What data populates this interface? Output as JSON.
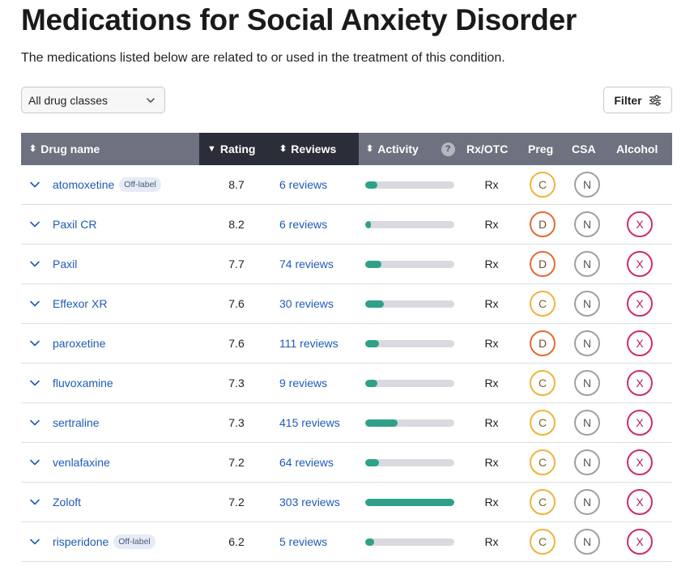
{
  "page": {
    "title": "Medications for Social Anxiety Disorder",
    "subtitle": "The medications listed below are related to or used in the treatment of this condition."
  },
  "controls": {
    "drug_class_select": {
      "value": "All drug classes",
      "icon": "chevron-down-icon"
    },
    "filter_button": {
      "label": "Filter",
      "icon": "sliders-icon"
    }
  },
  "colors": {
    "header_bg": "#6e7280",
    "header_active_bg": "#2b2e38",
    "link": "#1e5bb8",
    "activity_fill": "#2ea188",
    "preg_C": "#f0b43a",
    "preg_D": "#e46a36",
    "csa_N": "#9ea0a6",
    "alcohol_X": "#d02a6d"
  },
  "table": {
    "columns": {
      "drug_name": "Drug name",
      "rating": "Rating",
      "reviews": "Reviews",
      "activity": "Activity",
      "activity_help": "?",
      "rx_otc": "Rx/OTC",
      "preg": "Preg",
      "csa": "CSA",
      "alcohol": "Alcohol"
    },
    "sort_icons": {
      "drug_name": "⬍",
      "rating": "▼",
      "reviews": "⬍",
      "activity": "⬍"
    },
    "rows": [
      {
        "name": "atomoxetine",
        "tag": "Off-label",
        "rating": "8.7",
        "reviews": "6 reviews",
        "activity": 0.14,
        "rx": "Rx",
        "preg": "C",
        "csa": "N",
        "alcohol": ""
      },
      {
        "name": "Paxil CR",
        "tag": "",
        "rating": "8.2",
        "reviews": "6 reviews",
        "activity": 0.06,
        "rx": "Rx",
        "preg": "D",
        "csa": "N",
        "alcohol": "X"
      },
      {
        "name": "Paxil",
        "tag": "",
        "rating": "7.7",
        "reviews": "74 reviews",
        "activity": 0.18,
        "rx": "Rx",
        "preg": "D",
        "csa": "N",
        "alcohol": "X"
      },
      {
        "name": "Effexor XR",
        "tag": "",
        "rating": "7.6",
        "reviews": "30 reviews",
        "activity": 0.21,
        "rx": "Rx",
        "preg": "C",
        "csa": "N",
        "alcohol": "X"
      },
      {
        "name": "paroxetine",
        "tag": "",
        "rating": "7.6",
        "reviews": "111 reviews",
        "activity": 0.15,
        "rx": "Rx",
        "preg": "D",
        "csa": "N",
        "alcohol": "X"
      },
      {
        "name": "fluvoxamine",
        "tag": "",
        "rating": "7.3",
        "reviews": "9 reviews",
        "activity": 0.14,
        "rx": "Rx",
        "preg": "C",
        "csa": "N",
        "alcohol": "X"
      },
      {
        "name": "sertraline",
        "tag": "",
        "rating": "7.3",
        "reviews": "415 reviews",
        "activity": 0.36,
        "rx": "Rx",
        "preg": "C",
        "csa": "N",
        "alcohol": "X"
      },
      {
        "name": "venlafaxine",
        "tag": "",
        "rating": "7.2",
        "reviews": "64 reviews",
        "activity": 0.15,
        "rx": "Rx",
        "preg": "C",
        "csa": "N",
        "alcohol": "X"
      },
      {
        "name": "Zoloft",
        "tag": "",
        "rating": "7.2",
        "reviews": "303 reviews",
        "activity": 1.0,
        "rx": "Rx",
        "preg": "C",
        "csa": "N",
        "alcohol": "X"
      },
      {
        "name": "risperidone",
        "tag": "Off-label",
        "rating": "6.2",
        "reviews": "5 reviews",
        "activity": 0.1,
        "rx": "Rx",
        "preg": "C",
        "csa": "N",
        "alcohol": "X"
      }
    ]
  }
}
